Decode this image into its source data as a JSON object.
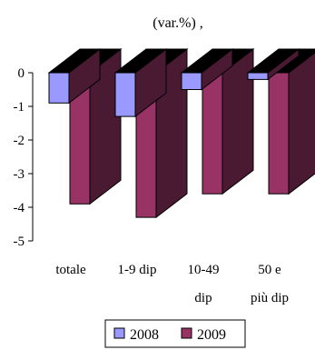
{
  "chart_data": {
    "type": "bar",
    "title": "(var.%) ,",
    "categories": [
      [
        "totale"
      ],
      [
        "1-9 dip"
      ],
      [
        "10-49",
        "dip"
      ],
      [
        "50 e",
        "più dip"
      ]
    ],
    "series": [
      {
        "name": "2008",
        "color": "#9999ff",
        "values": [
          -0.9,
          -1.3,
          -0.5,
          -0.2
        ]
      },
      {
        "name": "2009",
        "color": "#993366",
        "values": [
          -3.9,
          -4.3,
          -3.6,
          -3.6
        ]
      }
    ],
    "ylim": [
      -5,
      0
    ],
    "yticks": [
      0,
      -1,
      -2,
      -3,
      -4,
      -5
    ],
    "top_face_color": "#000000",
    "side_face_color": "#4a1a33",
    "grid": false,
    "legend_position": "bottom"
  }
}
